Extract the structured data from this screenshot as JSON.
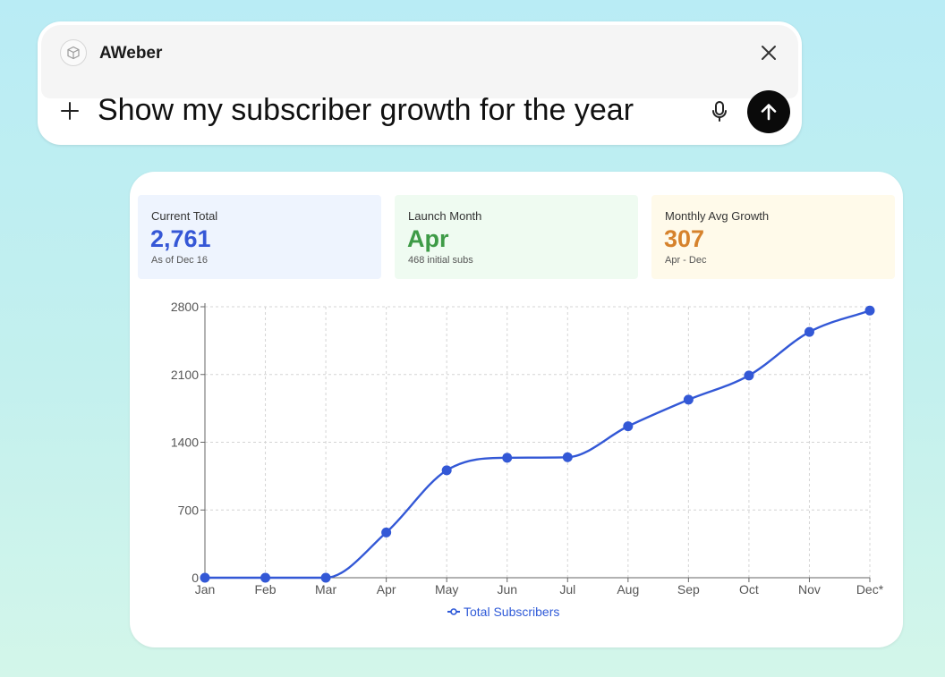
{
  "app": {
    "name": "AWeber",
    "prompt": "Show my subscriber growth for the year"
  },
  "icons": {
    "app": "cube-icon",
    "close": "close-icon",
    "add": "plus-icon",
    "mic": "microphone-icon",
    "send": "arrow-up-icon"
  },
  "stats": [
    {
      "label": "Current Total",
      "value": "2,761",
      "sub": "As of Dec 16",
      "color": "#3557d6"
    },
    {
      "label": "Launch Month",
      "value": "Apr",
      "sub": "468 initial subs",
      "color": "#3e9b47"
    },
    {
      "label": "Monthly Avg Growth",
      "value": "307",
      "sub": "Apr - Dec",
      "color": "#d6822c"
    }
  ],
  "chart_data": {
    "type": "line",
    "x": [
      "Jan",
      "Feb",
      "Mar",
      "Apr",
      "May",
      "Jun",
      "Jul",
      "Aug",
      "Sep",
      "Oct",
      "Nov",
      "Dec*"
    ],
    "series": [
      {
        "name": "Total Subscribers",
        "values": [
          0,
          0,
          0,
          468,
          1110,
          1240,
          1245,
          1565,
          1840,
          2090,
          2540,
          2761
        ],
        "color": "#3358d6"
      }
    ],
    "yticks": [
      0,
      700,
      1400,
      2100,
      2800
    ],
    "ylim": [
      0,
      2800
    ],
    "grid": true,
    "legend_position": "bottom-center"
  }
}
